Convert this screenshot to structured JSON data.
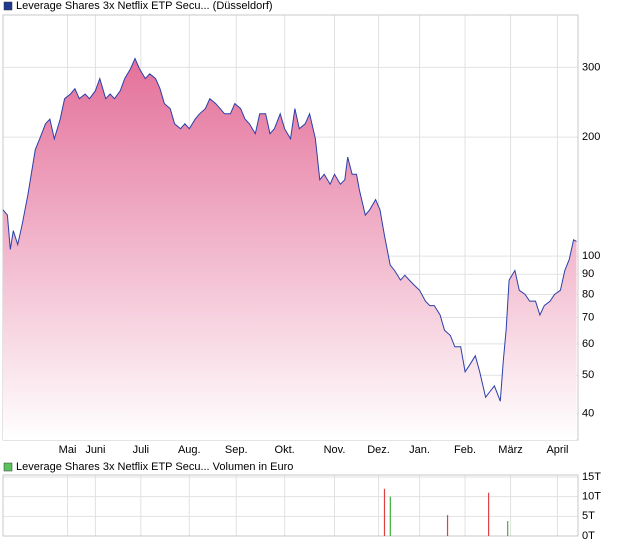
{
  "chart_data": [
    {
      "type": "area",
      "legend": "Leverage Shares 3x Netflix ETP Secu... (Düsseldorf)",
      "legend_color": "#1f3a8f",
      "color": "#2b3fa8",
      "fill_top": "#e4709a",
      "fill_bottom": "#ffffff",
      "log_scale": true,
      "grid": true,
      "x": [
        0,
        3,
        5,
        7,
        10,
        13,
        17,
        22,
        25,
        29,
        32,
        35,
        39,
        42,
        46,
        49,
        52,
        56,
        59,
        63,
        66,
        70,
        73,
        76,
        80,
        83,
        87,
        90,
        93,
        97,
        100,
        104,
        107,
        110,
        114,
        117,
        121,
        124,
        127,
        131,
        134,
        138,
        141,
        145,
        148,
        151,
        155,
        158,
        162,
        165,
        168,
        172,
        175,
        179,
        182,
        185,
        189,
        192,
        196,
        199,
        202,
        206,
        209,
        213,
        216,
        219,
        223,
        226,
        230,
        233,
        235,
        238,
        241,
        243,
        247,
        250,
        254,
        257,
        260,
        264,
        267,
        271,
        274,
        277,
        281,
        284,
        288,
        291,
        294,
        298,
        301,
        305,
        308,
        312,
        315,
        318,
        322,
        325,
        329,
        332,
        335,
        339,
        341,
        343,
        345,
        347,
        349,
        352,
        356,
        359,
        363,
        366,
        369,
        373,
        376,
        380,
        383,
        386,
        389,
        391
      ],
      "values": [
        131,
        127,
        104,
        116,
        107,
        120,
        143,
        186,
        198,
        216,
        222,
        198,
        222,
        250,
        257,
        265,
        250,
        257,
        250,
        262,
        281,
        250,
        257,
        250,
        262,
        281,
        298,
        316,
        298,
        281,
        289,
        281,
        265,
        243,
        236,
        216,
        210,
        216,
        210,
        222,
        229,
        236,
        250,
        243,
        236,
        229,
        229,
        243,
        236,
        222,
        216,
        204,
        229,
        229,
        204,
        210,
        229,
        210,
        198,
        236,
        210,
        216,
        229,
        198,
        156,
        161,
        152,
        161,
        152,
        156,
        178,
        161,
        161,
        147,
        127,
        131,
        139,
        131,
        113,
        95,
        92,
        87,
        89.5,
        87,
        84,
        82,
        77,
        75,
        75,
        71,
        65,
        63,
        59,
        59,
        51,
        53,
        56,
        51,
        44,
        45.5,
        47,
        43,
        54,
        65,
        87,
        89.5,
        92,
        82,
        80,
        77,
        77,
        71,
        75,
        77,
        80,
        82,
        92,
        98,
        110,
        109
      ],
      "xlim": [
        0,
        392
      ],
      "xticks": [
        {
          "value": 44,
          "label": "Mai"
        },
        {
          "value": 63,
          "label": "Juni"
        },
        {
          "value": 94,
          "label": "Juli"
        },
        {
          "value": 127,
          "label": "Aug."
        },
        {
          "value": 159,
          "label": "Sep."
        },
        {
          "value": 192,
          "label": "Okt."
        },
        {
          "value": 226,
          "label": "Nov."
        },
        {
          "value": 256,
          "label": "Dez."
        },
        {
          "value": 284,
          "label": "Jan."
        },
        {
          "value": 315,
          "label": "Feb."
        },
        {
          "value": 346,
          "label": "März"
        },
        {
          "value": 378,
          "label": "April"
        }
      ],
      "ylim": [
        34.3,
        407
      ],
      "yticks": [
        40,
        50,
        60,
        70,
        80,
        90,
        100,
        200,
        300
      ]
    },
    {
      "type": "bar",
      "legend": "Leverage Shares 3x Netflix ETP Secu... Volumen in Euro",
      "legend_color": "#5cc45c",
      "grid": true,
      "x": [
        260,
        264,
        303,
        331,
        344
      ],
      "values": [
        12000,
        10000,
        5300,
        11000,
        3800
      ],
      "colors": [
        "#e04040",
        "#40b040",
        "#e04040",
        "#e04040",
        "#40b040"
      ],
      "xlim": [
        0,
        392
      ],
      "xticks": [
        44,
        63,
        94,
        127,
        159,
        192,
        226,
        256,
        284,
        315,
        346,
        378
      ],
      "ylim": [
        0,
        15500
      ],
      "yticks": [
        {
          "value": 0,
          "label": "0T"
        },
        {
          "value": 5000,
          "label": "5T"
        },
        {
          "value": 10000,
          "label": "10T"
        },
        {
          "value": 15000,
          "label": "15T"
        }
      ]
    }
  ]
}
